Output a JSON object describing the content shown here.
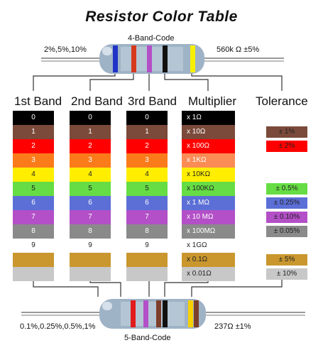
{
  "title": "Resistor Color Table",
  "four_band": {
    "label": "4-Band-Code",
    "left_text": "2%,5%,10%",
    "right_text": "560k Ω  ±5%",
    "bands": [
      "#1f33c9",
      "#d63a1e",
      "#b34fc7",
      "#111111",
      "#f7f000"
    ]
  },
  "five_band": {
    "label": "5-Band-Code",
    "left_text": "0.1%,0.25%,0.5%,1%",
    "right_text": "237Ω  ±1%",
    "bands": [
      "#e21c1c",
      "#b34fc7",
      "#7b3f2b",
      "#111111",
      "#f7d000",
      "#7b3f2b"
    ]
  },
  "headers": [
    "1st Band",
    "2nd Band",
    "3rd Band",
    "Multiplier",
    "Tolerance"
  ],
  "colors": [
    {
      "name": "black",
      "hex": "#000000",
      "digit": "0",
      "multiplier": "x 1Ω",
      "text": "#ffffff"
    },
    {
      "name": "brown",
      "hex": "#7b4a3a",
      "digit": "1",
      "multiplier": "x 10Ω",
      "text": "#ffffff"
    },
    {
      "name": "red",
      "hex": "#ff0000",
      "digit": "2",
      "multiplier": "x 100Ω",
      "text": "#ffffff"
    },
    {
      "name": "orange",
      "hex": "#fb7b1b",
      "digit": "3",
      "multiplier": "x 1KΩ",
      "text": "#ffffff"
    },
    {
      "name": "yellow",
      "hex": "#ffee00",
      "digit": "4",
      "multiplier": "x 10KΩ",
      "text": "#222222"
    },
    {
      "name": "green",
      "hex": "#66dd44",
      "digit": "5",
      "multiplier": "x 100KΩ",
      "text": "#222222"
    },
    {
      "name": "blue",
      "hex": "#5c6fd6",
      "digit": "6",
      "multiplier": "x 1 MΩ",
      "text": "#ffffff"
    },
    {
      "name": "violet",
      "hex": "#b34fc7",
      "digit": "7",
      "multiplier": "x 10 MΩ",
      "text": "#ffffff"
    },
    {
      "name": "grey",
      "hex": "#8a8a8a",
      "digit": "8",
      "multiplier": "x 100MΩ",
      "text": "#ffffff"
    },
    {
      "name": "white",
      "hex": "#ffffff",
      "digit": "9",
      "multiplier": "x 1GΩ",
      "text": "#222222"
    },
    {
      "name": "gold",
      "hex": "#c9972e",
      "digit": "",
      "multiplier": "x 0.1Ω",
      "text": "#222222"
    },
    {
      "name": "silver",
      "hex": "#c8c8c8",
      "digit": "",
      "multiplier": "x 0.01Ω",
      "text": "#222222"
    }
  ],
  "multiplier_orange_hex": "#fb8c55",
  "tolerances": [
    {
      "color": "brown",
      "hex": "#7b4a3a",
      "value": "± 1%",
      "text": "#222222"
    },
    {
      "color": "red",
      "hex": "#ff0000",
      "value": "± 2%",
      "text": "#222222"
    },
    {
      "color": "green",
      "hex": "#66dd44",
      "value": "± 0.5%",
      "text": "#222222"
    },
    {
      "color": "blue",
      "hex": "#5c6fd6",
      "value": "± 0.25%",
      "text": "#222222"
    },
    {
      "color": "violet",
      "hex": "#b34fc7",
      "value": "± 0.10%",
      "text": "#222222"
    },
    {
      "color": "grey",
      "hex": "#8a8a8a",
      "value": "± 0.05%",
      "text": "#222222"
    },
    {
      "color": "gold",
      "hex": "#c9972e",
      "value": "± 5%",
      "text": "#222222"
    },
    {
      "color": "silver",
      "hex": "#c8c8c8",
      "value": "± 10%",
      "text": "#222222"
    }
  ]
}
